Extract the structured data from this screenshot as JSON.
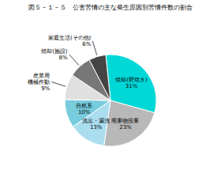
{
  "chart_data": {
    "type": "pie",
    "title": "図５－１－５　公害苦情の主な発生原因別苦情件数の割合",
    "categories": [
      "焼却(野焼き)",
      "廃棄物投棄",
      "流出・漏洩",
      "自然系",
      "産業用\n機械作動",
      "焼却(施設)",
      "家庭生活(その他)"
    ],
    "values": [
      31,
      23,
      13,
      10,
      9,
      8,
      6
    ],
    "value_labels": [
      "31%",
      "23%",
      "13%",
      "10%",
      "9%",
      "8%",
      "6%"
    ],
    "colors": [
      "#00d8d8",
      "#b8b8b8",
      "#aaddee",
      "#77ccdd",
      "#e0e0e0",
      "#777777",
      "#444444"
    ],
    "data_labels": true
  }
}
